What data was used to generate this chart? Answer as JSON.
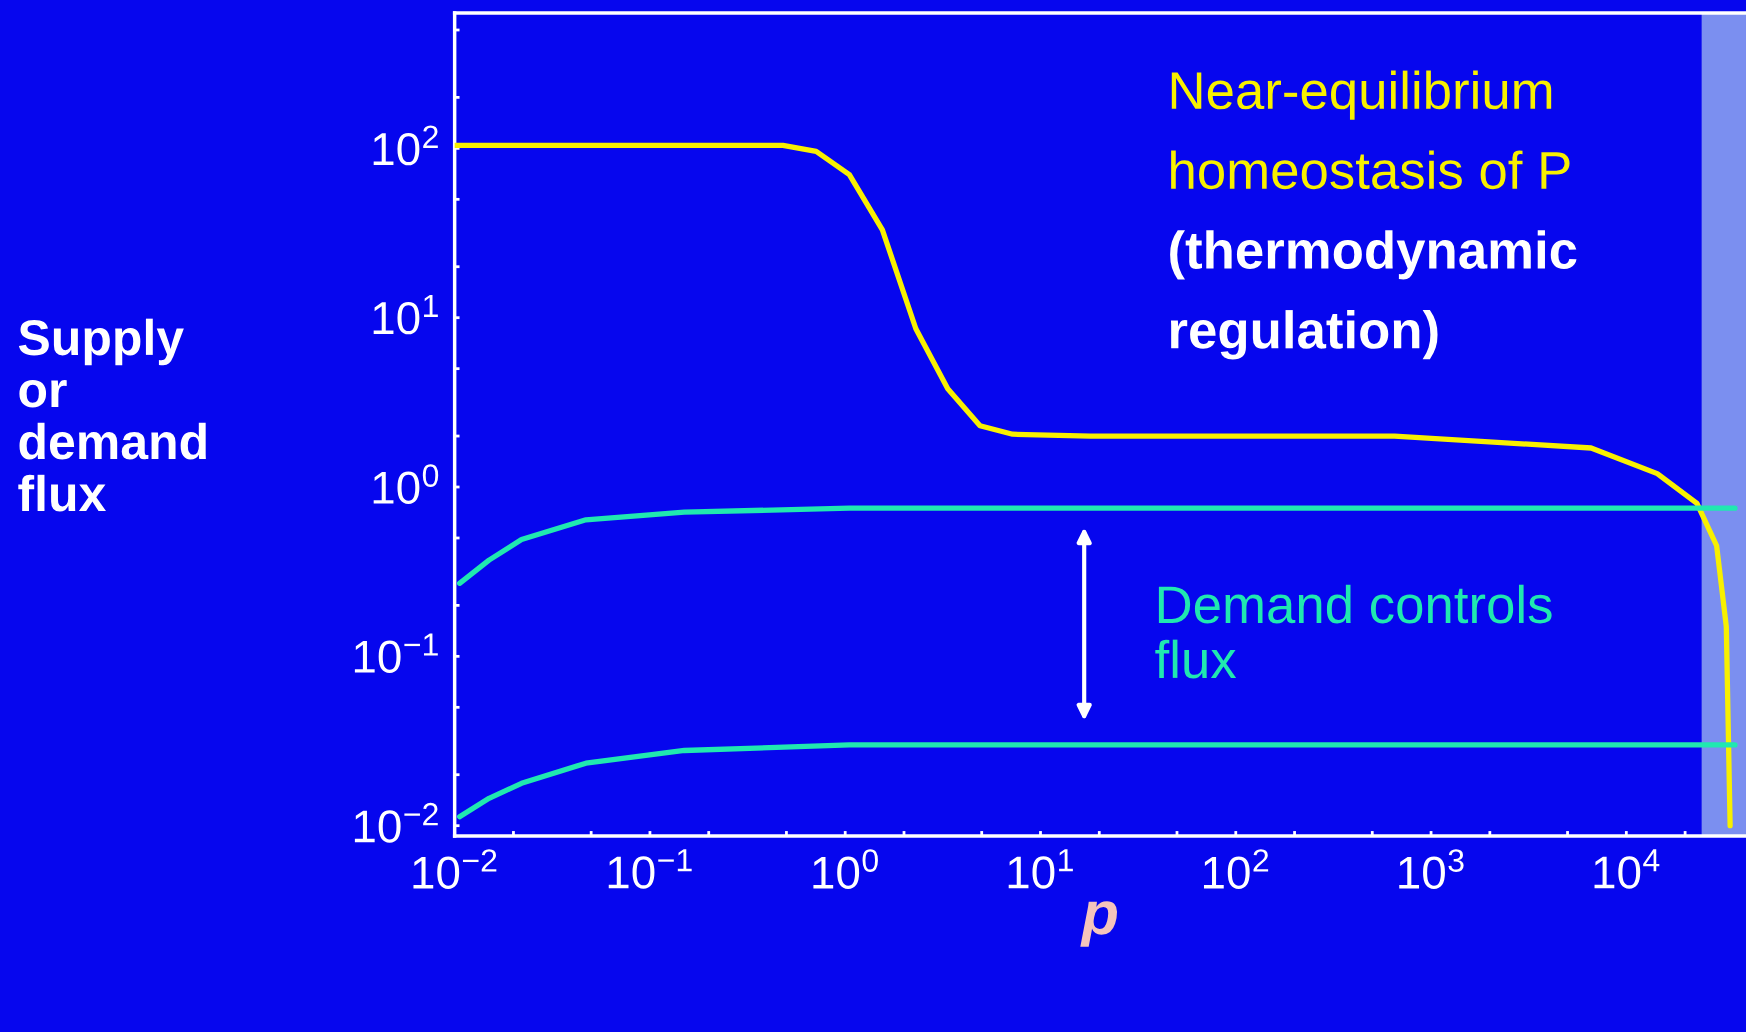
{
  "chart_data": {
    "type": "line",
    "xlabel": "p",
    "ylabel": "Supply\nor\ndemand\nflux",
    "series": [
      {
        "color": "#f8f000",
        "x": [
          0.01,
          0.1,
          0.48,
          0.71,
          1.05,
          1.55,
          2.3,
          3.35,
          4.9,
          7.2,
          18,
          650,
          6600,
          14400,
          23000,
          29000,
          32500,
          34000
        ],
        "values": [
          104,
          104,
          104,
          96,
          70,
          33,
          8.6,
          3.8,
          2.3,
          2.05,
          2.0,
          2.0,
          1.7,
          1.2,
          0.8,
          0.45,
          0.15,
          0.01
        ]
      },
      {
        "color": "#20e8b0",
        "x": [
          0.0106,
          0.015,
          0.022,
          0.047,
          0.15,
          1.05,
          36000
        ],
        "values": [
          0.27,
          0.37,
          0.49,
          0.64,
          0.71,
          0.75,
          0.75
        ]
      },
      {
        "color": "#20e8b0",
        "x": [
          0.0106,
          0.015,
          0.022,
          0.047,
          0.15,
          1.05,
          36000
        ],
        "values": [
          0.0113,
          0.0145,
          0.0178,
          0.0234,
          0.0278,
          0.03,
          0.03
        ]
      }
    ],
    "log": "xy",
    "marker": "none",
    "line_style": "solid",
    "grid": false,
    "legend": false,
    "xlim": [
      0.01,
      41000
    ],
    "ylim": [
      0.0087,
      630
    ],
    "xticks": [
      {
        "value": 0.01,
        "label": "10$^{−2}$"
      },
      {
        "value": 0.02,
        "label": null
      },
      {
        "value": 0.05,
        "label": null
      },
      {
        "value": 0.1,
        "label": "10$^{−1}$"
      },
      {
        "value": 0.2,
        "label": null
      },
      {
        "value": 0.5,
        "label": null
      },
      {
        "value": 1,
        "label": "10$^{0}$"
      },
      {
        "value": 2,
        "label": null
      },
      {
        "value": 5,
        "label": null
      },
      {
        "value": 10,
        "label": "10$^{1}$"
      },
      {
        "value": 20,
        "label": null
      },
      {
        "value": 50,
        "label": null
      },
      {
        "value": 100,
        "label": "10$^{2}$"
      },
      {
        "value": 200,
        "label": null
      },
      {
        "value": 500,
        "label": null
      },
      {
        "value": 1000,
        "label": "10$^{3}$"
      },
      {
        "value": 2000,
        "label": null
      },
      {
        "value": 5000,
        "label": null
      },
      {
        "value": 10000,
        "label": "10$^{4}$"
      },
      {
        "value": 20000,
        "label": null
      }
    ],
    "yticks": [
      {
        "value": 0.01,
        "label": "10$^{−2}$"
      },
      {
        "value": 0.02,
        "label": null
      },
      {
        "value": 0.05,
        "label": null
      },
      {
        "value": 0.1,
        "label": "10$^{−1}$"
      },
      {
        "value": 0.2,
        "label": null
      },
      {
        "value": 0.5,
        "label": null
      },
      {
        "value": 1,
        "label": "10$^{0}$"
      },
      {
        "value": 2,
        "label": null
      },
      {
        "value": 5,
        "label": null
      },
      {
        "value": 10,
        "label": "10$^{1}$"
      },
      {
        "value": 20,
        "label": null
      },
      {
        "value": 50,
        "label": null
      },
      {
        "value": 100,
        "label": "10$^{2}$"
      },
      {
        "value": 200,
        "label": null
      },
      {
        "value": 500,
        "label": null
      }
    ],
    "bands": [
      {
        "axis": "x",
        "from": 24300,
        "to": 41000,
        "color": "#7b8ff0"
      }
    ],
    "annotations": [
      "Near-equilibrium\nhomeostasis of P\n(thermodynamic\nregulation)",
      "Demand controls\nflux"
    ]
  }
}
